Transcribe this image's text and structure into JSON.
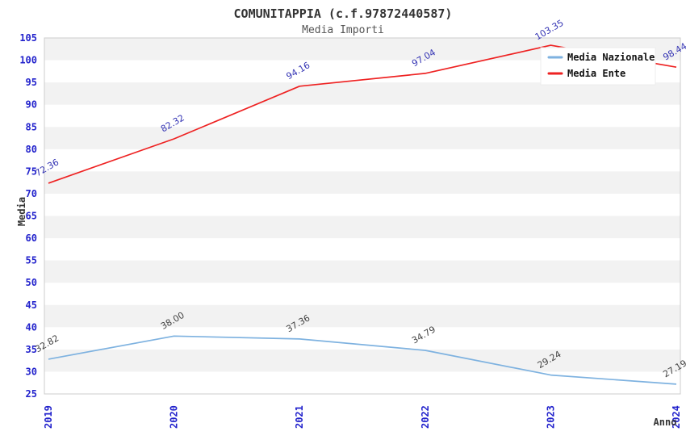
{
  "chart_data": {
    "type": "line",
    "title": "COMUNITAPPIA (c.f.97872440587)",
    "subtitle": "Media Importi",
    "xlabel": "Anno",
    "ylabel": "Media",
    "categories": [
      "2019",
      "2020",
      "2021",
      "2022",
      "2023",
      "2024"
    ],
    "series": [
      {
        "name": "Media Nazionale",
        "color": "#7eb2e0",
        "label_color": "#444444",
        "values": [
          32.82,
          38.0,
          37.36,
          34.79,
          29.24,
          27.19
        ]
      },
      {
        "name": "Media Ente",
        "color": "#ee2222",
        "label_color": "#3434b4",
        "values": [
          72.36,
          82.32,
          94.16,
          97.04,
          103.35,
          98.44
        ]
      }
    ],
    "ylim": [
      25,
      105
    ],
    "ytick_step": 5,
    "legend_position": "top-right",
    "grid": "horizontal-bands",
    "point_label_decimals": 2,
    "colors": {
      "tick_label": "#2222cc",
      "band": "#f2f2f2",
      "plot_border": "#cccccc",
      "title": "#333333",
      "subtitle": "#555555",
      "axis_title": "#333333",
      "legend_text": "#111111",
      "legend_bg": "#ffffff"
    }
  }
}
